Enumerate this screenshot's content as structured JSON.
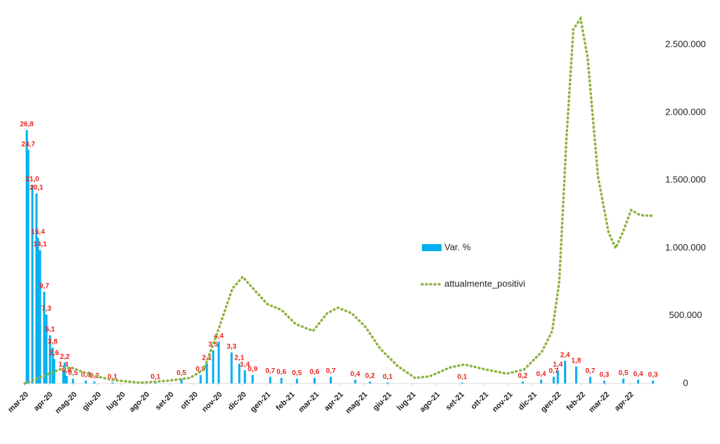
{
  "chart_data": {
    "type": "combo",
    "xlim": [
      0,
      26
    ],
    "xticks": [
      {
        "value": 0,
        "label": "mar-20"
      },
      {
        "value": 1,
        "label": "apr-20"
      },
      {
        "value": 2,
        "label": "mag-20"
      },
      {
        "value": 3,
        "label": "giu-20"
      },
      {
        "value": 4,
        "label": "lug-20"
      },
      {
        "value": 5,
        "label": "ago-20"
      },
      {
        "value": 6,
        "label": "set-20"
      },
      {
        "value": 7,
        "label": "ott-20"
      },
      {
        "value": 8,
        "label": "nov-20"
      },
      {
        "value": 9,
        "label": "dic-20"
      },
      {
        "value": 10,
        "label": "gen-21"
      },
      {
        "value": 11,
        "label": "feb-21"
      },
      {
        "value": 12,
        "label": "mar-21"
      },
      {
        "value": 13,
        "label": "apr-21"
      },
      {
        "value": 14,
        "label": "mag-21"
      },
      {
        "value": 15,
        "label": "giu-21"
      },
      {
        "value": 16,
        "label": "lug-21"
      },
      {
        "value": 17,
        "label": "ago-21"
      },
      {
        "value": 18,
        "label": "set-21"
      },
      {
        "value": 19,
        "label": "ott-21"
      },
      {
        "value": 20,
        "label": "nov-21"
      },
      {
        "value": 21,
        "label": "dic-21"
      },
      {
        "value": 22,
        "label": "gen-22"
      },
      {
        "value": 23,
        "label": "feb-22"
      },
      {
        "value": 24,
        "label": "mar-22"
      },
      {
        "value": 25,
        "label": "apr-22"
      }
    ],
    "ylim": [
      0,
      38.7
    ],
    "y2lim": [
      0,
      2700000
    ],
    "y2ticks": [
      0,
      {
        "value": 500000,
        "label": "500.000"
      },
      {
        "value": 1000000,
        "label": "1.000.000"
      },
      {
        "value": 1500000,
        "label": "1.500.000"
      },
      {
        "value": 2000000,
        "label": "2.000.000"
      },
      {
        "value": 2500000,
        "label": "2.500.000"
      }
    ],
    "series": [
      {
        "name": "Var. %",
        "type": "bar",
        "color": "#00b0f0",
        "x": [
          0.09,
          0.15,
          0.32,
          0.49,
          0.55,
          0.64,
          0.81,
          0.9,
          1.05,
          1.16,
          1.22,
          1.6,
          1.66,
          1.74,
          2.0,
          2.53,
          2.88,
          3.63,
          5.41,
          6.48,
          7.27,
          7.53,
          7.79,
          8.02,
          8.55,
          8.87,
          9.1,
          9.42,
          10.15,
          10.61,
          11.25,
          11.98,
          12.65,
          13.66,
          14.27,
          15.0,
          18.08,
          20.58,
          21.34,
          21.86,
          22.03,
          22.33,
          22.79,
          23.37,
          23.95,
          24.74,
          25.35,
          25.96
        ],
        "values": [
          26.8,
          24.7,
          21.0,
          20.1,
          15.4,
          14.1,
          9.7,
          7.3,
          5.1,
          3.8,
          2.6,
          1.4,
          2.2,
          0.8,
          0.5,
          0.3,
          0.2,
          0.1,
          0.1,
          0.5,
          0.9,
          2.1,
          3.5,
          4.4,
          3.3,
          2.1,
          1.4,
          0.9,
          0.7,
          0.6,
          0.5,
          0.6,
          0.7,
          0.4,
          0.2,
          0.1,
          0.1,
          0.2,
          0.4,
          0.7,
          1.4,
          2.4,
          1.8,
          0.7,
          0.3,
          0.5,
          0.4,
          0.3
        ],
        "value_labels": [
          "26,8",
          "24,7",
          "21,0",
          "20,1",
          "15,4",
          "14,1",
          "9,7",
          "7,3",
          "5,1",
          "3,8",
          "2,6",
          "1,4",
          "2,2",
          "0,8",
          "0,5",
          "0,3",
          "0,2",
          "0,1",
          "0,1",
          "0,5",
          "0,9",
          "2,1",
          "3,5",
          "4,4",
          "3,3",
          "2,1",
          "1,4",
          "0,9",
          "0,7",
          "0,6",
          "0,5",
          "0,6",
          "0,7",
          "0,4",
          "0,2",
          "0,1",
          "0,1",
          "0,2",
          "0,4",
          "0,7",
          "1,4",
          "2,4",
          "1,8",
          "0,7",
          "0,3",
          "0,5",
          "0,4",
          "0,3"
        ]
      },
      {
        "name": "attualmente_positivi",
        "type": "line",
        "color": "#8db33f",
        "axis": "y2",
        "x": [
          0,
          0.73,
          1.45,
          1.9,
          2.76,
          3.63,
          4.8,
          5.96,
          6.83,
          7.41,
          7.99,
          8.58,
          9.01,
          9.45,
          10.03,
          10.61,
          11.19,
          11.92,
          12.5,
          12.94,
          13.52,
          14.1,
          14.68,
          15.41,
          16.13,
          16.72,
          17.59,
          18.17,
          19.04,
          19.91,
          20.64,
          21.37,
          21.8,
          22.09,
          22.38,
          22.67,
          22.97,
          23.26,
          23.69,
          24.13,
          24.42,
          24.71,
          25.06,
          25.44,
          25.96
        ],
        "values": [
          0,
          52000,
          104000,
          119000,
          62000,
          26000,
          5000,
          21000,
          41000,
          104000,
          388000,
          699000,
          787000,
          699000,
          585000,
          543000,
          440000,
          388000,
          518000,
          559000,
          518000,
          414000,
          259000,
          129000,
          41000,
          52000,
          119000,
          140000,
          104000,
          72000,
          104000,
          233000,
          388000,
          750000,
          1786000,
          2614000,
          2692000,
          2407000,
          1527000,
          1113000,
          999000,
          1113000,
          1279000,
          1242000,
          1237000
        ]
      }
    ]
  }
}
